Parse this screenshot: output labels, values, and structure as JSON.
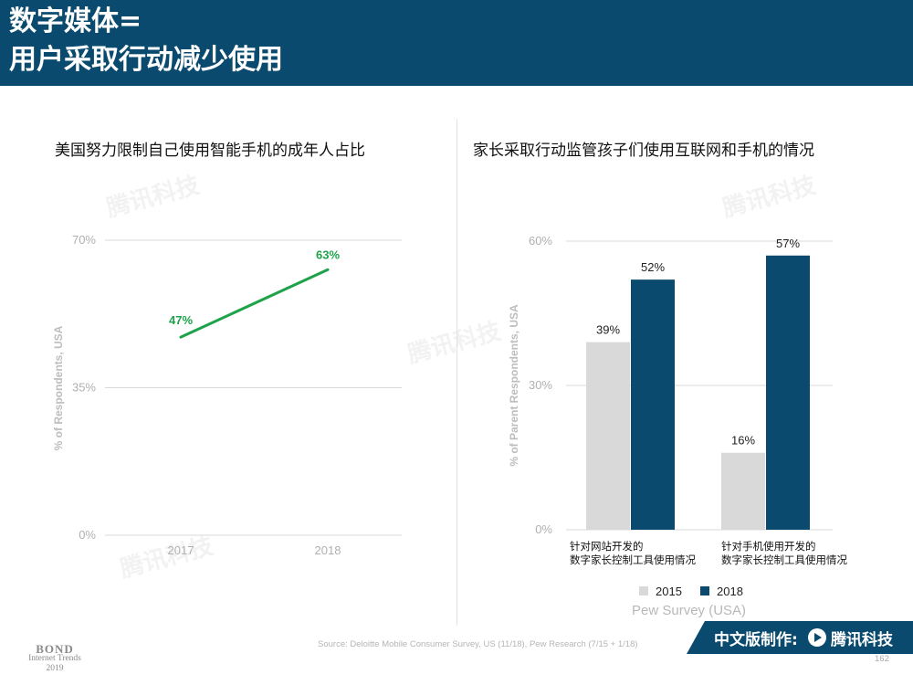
{
  "header": {
    "line1": "数字媒体=",
    "line2": "用户采取行动减少使用"
  },
  "colors": {
    "header_bg": "#0a4a6e",
    "line_green": "#1ea24a",
    "bar_2015": "#d9d9d9",
    "bar_2018": "#0a4a6e",
    "grid": "#d9d9d9"
  },
  "watermark": "腾讯科技",
  "left_chart": {
    "title": "美国努力限制自己使用智能手机的成年人占比",
    "ylabel": "% of Respondents, USA",
    "y_ticks": [
      "0%",
      "35%",
      "70%"
    ],
    "x_ticks": [
      "2017",
      "2018"
    ],
    "data_labels": [
      "47%",
      "63%"
    ]
  },
  "right_chart": {
    "title": "家长采取行动监管孩子们使用互联网和手机的情况",
    "ylabel": "% of Parent Respondents, USA",
    "y_ticks": [
      "0%",
      "30%",
      "60%"
    ],
    "cat1_line1": "针对网站开发的",
    "cat1_line2": "数字家长控制工具使用情况",
    "cat2_line1": "针对手机使用开发的",
    "cat2_line2": "数字家长控制工具使用情况",
    "data_labels": [
      "39%",
      "52%",
      "16%",
      "57%"
    ],
    "legend": [
      "2015",
      "2018"
    ],
    "note": "Pew Survey (USA)"
  },
  "chart_data": [
    {
      "type": "line",
      "title": "美国努力限制自己使用智能手机的成年人占比",
      "xlabel": "",
      "ylabel": "% of Respondents, USA",
      "x": [
        "2017",
        "2018"
      ],
      "series": [
        {
          "values": [
            47,
            63
          ]
        }
      ],
      "ylim": [
        0,
        70
      ],
      "grid": true
    },
    {
      "type": "bar",
      "title": "家长采取行动监管孩子们使用互联网和手机的情况",
      "xlabel": "",
      "ylabel": "% of Parent Respondents, USA",
      "categories": [
        "针对网站开发的数字家长控制工具使用情况",
        "针对手机使用开发的数字家长控制工具使用情况"
      ],
      "series": [
        {
          "name": "2015",
          "values": [
            39,
            16
          ]
        },
        {
          "name": "2018",
          "values": [
            52,
            57
          ]
        }
      ],
      "ylim": [
        0,
        60
      ],
      "grid": true,
      "legend_placement": "bottom"
    }
  ],
  "footer": {
    "source": "Source: Deloitte Mobile Consumer Survey, US (11/18), Pew Research (7/15 + 1/18)",
    "page": "162",
    "bond_line1": "BOND",
    "bond_line2": "Internet Trends",
    "bond_line3": "2019",
    "badge_text": "中文版制作:",
    "badge_brand": "腾讯科技"
  }
}
